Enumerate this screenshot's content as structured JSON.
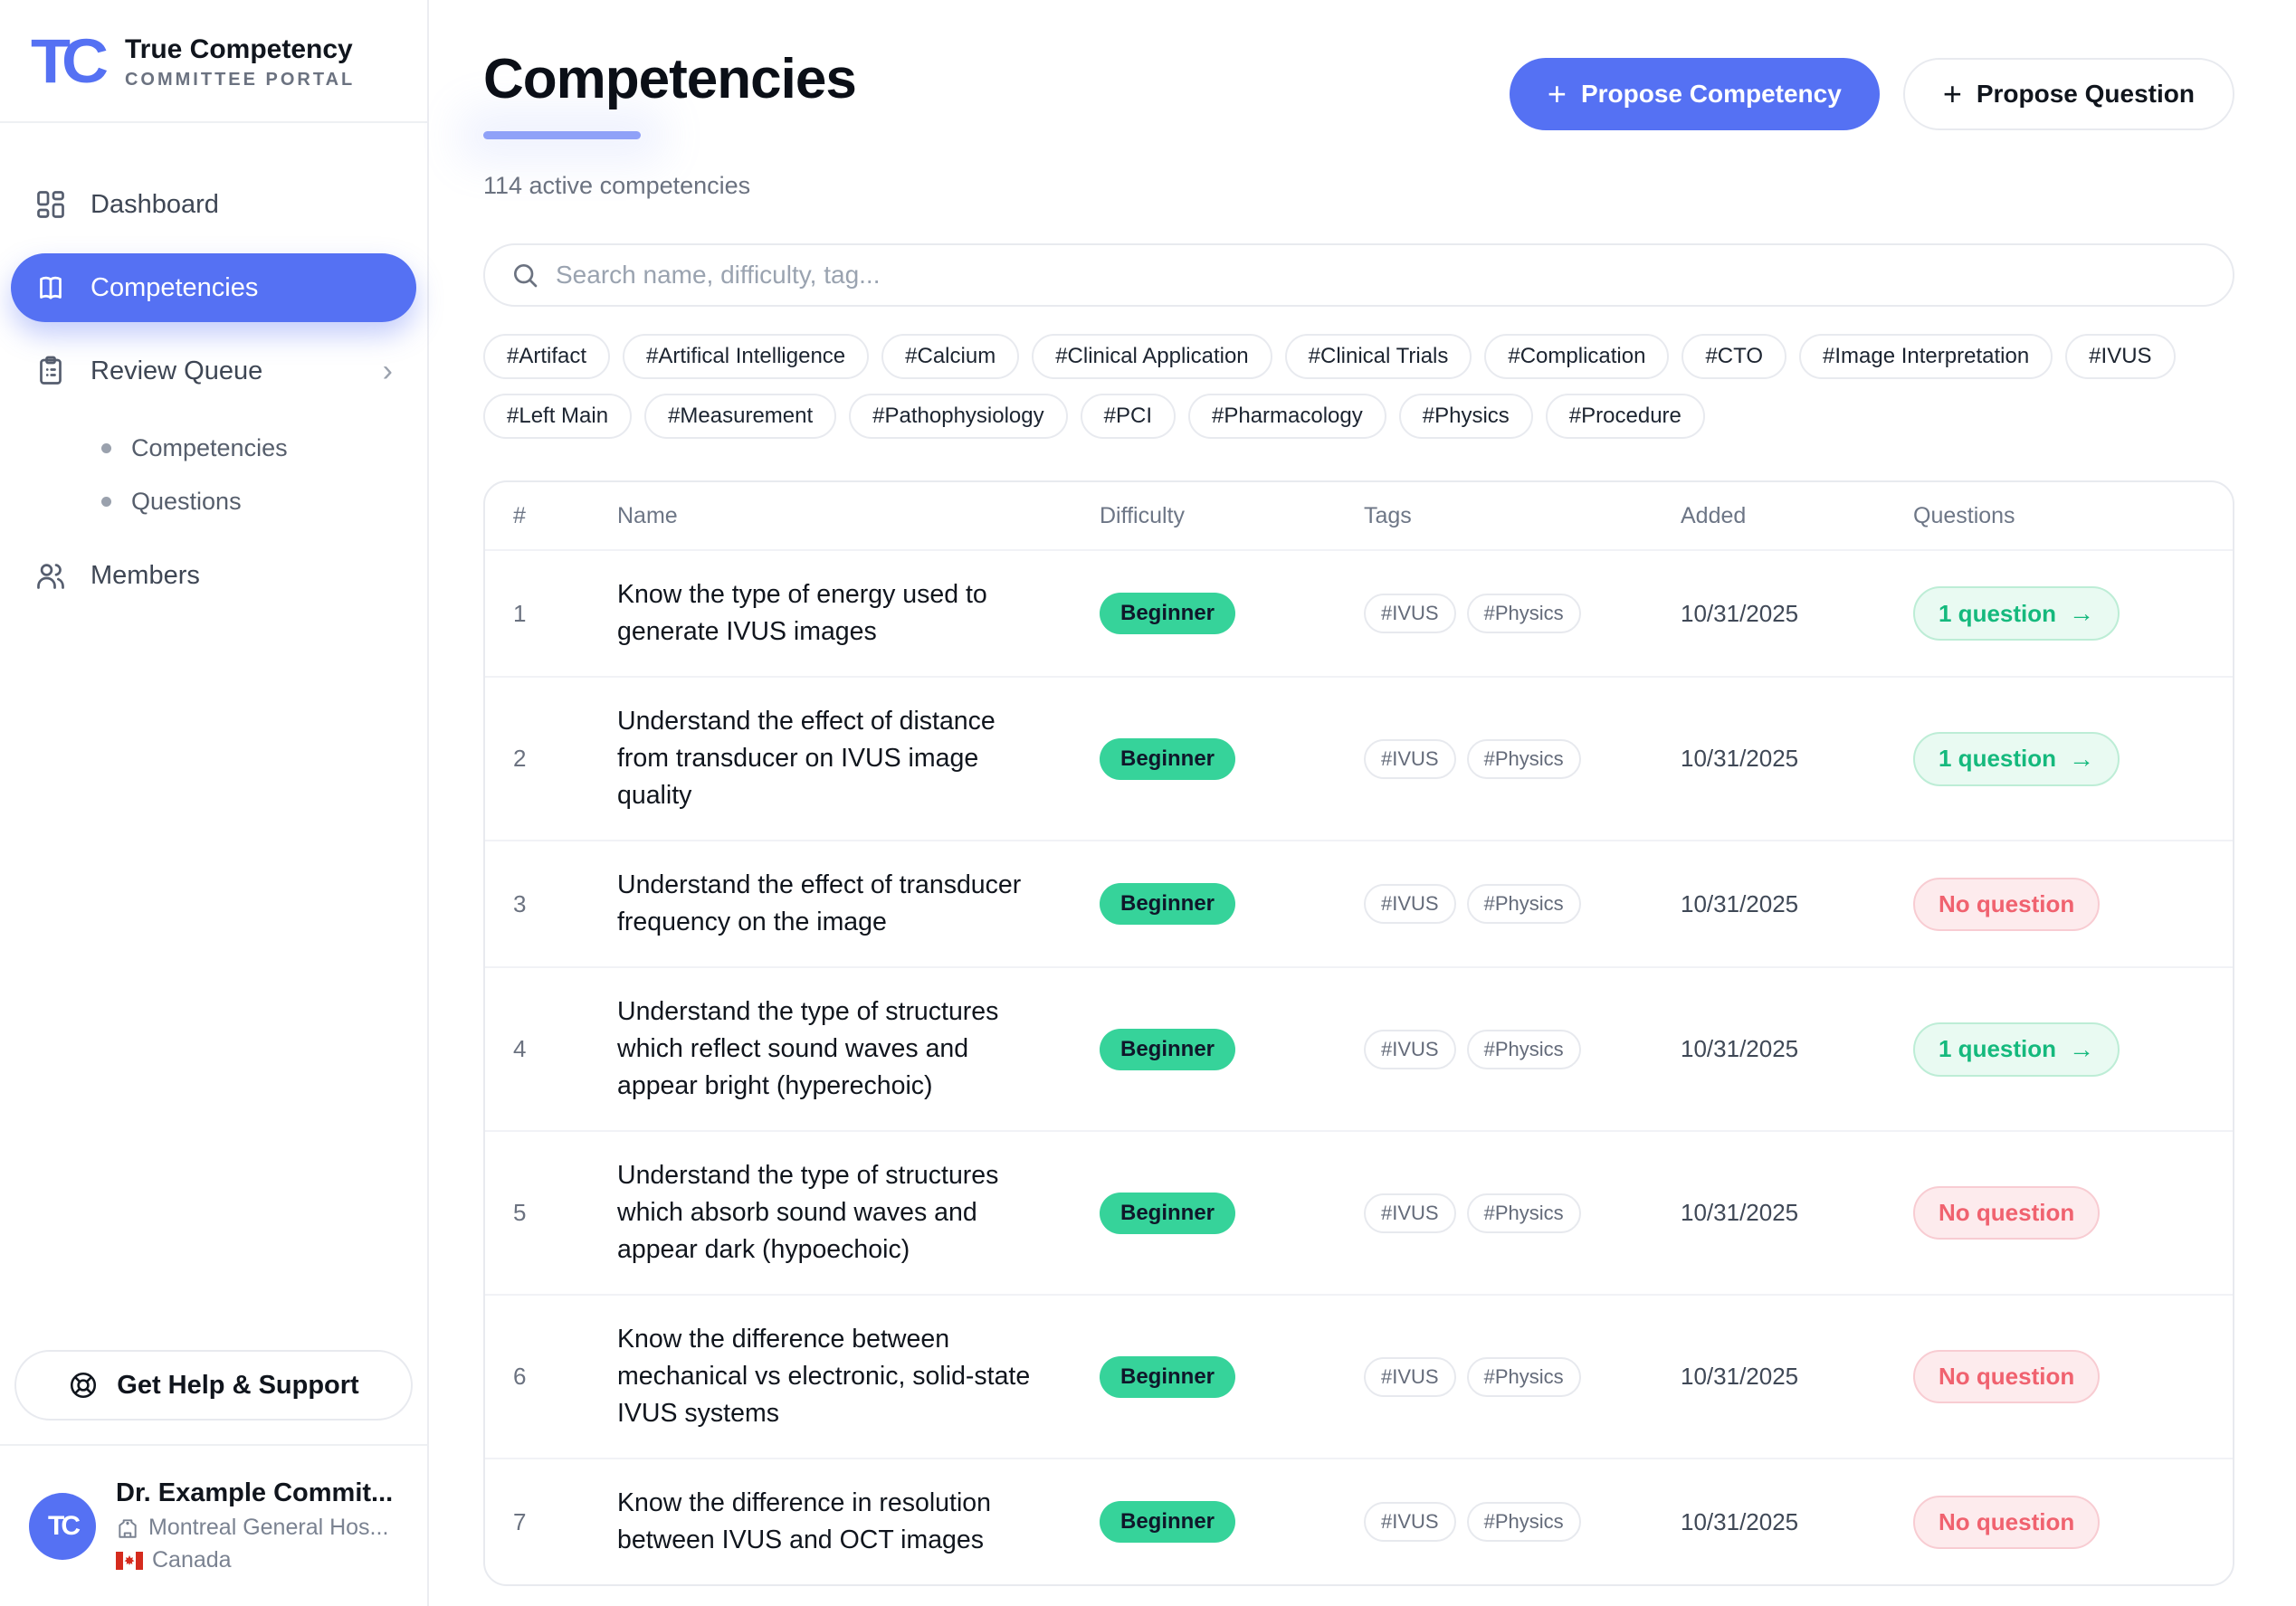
{
  "brand": {
    "mark": "TC",
    "name": "True Competency",
    "tagline": "COMMITTEE PORTAL"
  },
  "sidebar": {
    "dashboard": "Dashboard",
    "competencies": "Competencies",
    "review_queue": "Review Queue",
    "review_chevron": "›",
    "review_children": [
      "Competencies",
      "Questions"
    ],
    "members": "Members",
    "help": "Get Help & Support",
    "user": {
      "avatar": "TC",
      "name": "Dr. Example Commit...",
      "hospital": "Montreal General Hos...",
      "country": "Canada"
    }
  },
  "page": {
    "title": "Competencies",
    "count_label": "114 active competencies"
  },
  "actions": {
    "plus": "+",
    "propose_competency": "Propose Competency",
    "propose_question": "Propose Question"
  },
  "search": {
    "placeholder": "Search name, difficulty, tag..."
  },
  "filter_tags": [
    "#Artifact",
    "#Artifical Intelligence",
    "#Calcium",
    "#Clinical Application",
    "#Clinical Trials",
    "#Complication",
    "#CTO",
    "#Image Interpretation",
    "#IVUS",
    "#Left Main",
    "#Measurement",
    "#Pathophysiology",
    "#PCI",
    "#Pharmacology",
    "#Physics",
    "#Procedure"
  ],
  "table": {
    "columns": {
      "num": "#",
      "name": "Name",
      "difficulty": "Difficulty",
      "tags": "Tags",
      "added": "Added",
      "questions": "Questions"
    },
    "arrow": "→",
    "rows": [
      {
        "num": "1",
        "name": "Know the type of energy used to generate IVUS images",
        "difficulty": "Beginner",
        "tags": [
          "#IVUS",
          "#Physics"
        ],
        "added": "10/31/2025",
        "questions": "1 question",
        "has_questions": true
      },
      {
        "num": "2",
        "name": "Understand the effect of distance from transducer on IVUS image quality",
        "difficulty": "Beginner",
        "tags": [
          "#IVUS",
          "#Physics"
        ],
        "added": "10/31/2025",
        "questions": "1 question",
        "has_questions": true
      },
      {
        "num": "3",
        "name": "Understand the effect of transducer frequency on the image",
        "difficulty": "Beginner",
        "tags": [
          "#IVUS",
          "#Physics"
        ],
        "added": "10/31/2025",
        "questions": "No question",
        "has_questions": false
      },
      {
        "num": "4",
        "name": "Understand the type of structures which reflect sound waves and appear bright (hyperechoic)",
        "difficulty": "Beginner",
        "tags": [
          "#IVUS",
          "#Physics"
        ],
        "added": "10/31/2025",
        "questions": "1 question",
        "has_questions": true
      },
      {
        "num": "5",
        "name": "Understand the type of structures which absorb sound waves and appear dark (hypoechoic)",
        "difficulty": "Beginner",
        "tags": [
          "#IVUS",
          "#Physics"
        ],
        "added": "10/31/2025",
        "questions": "No question",
        "has_questions": false
      },
      {
        "num": "6",
        "name": "Know the difference between mechanical vs electronic, solid-state IVUS systems",
        "difficulty": "Beginner",
        "tags": [
          "#IVUS",
          "#Physics"
        ],
        "added": "10/31/2025",
        "questions": "No question",
        "has_questions": false
      },
      {
        "num": "7",
        "name": "Know the difference in resolution between IVUS and OCT images",
        "difficulty": "Beginner",
        "tags": [
          "#IVUS",
          "#Physics"
        ],
        "added": "10/31/2025",
        "questions": "No question",
        "has_questions": false
      }
    ]
  },
  "colors": {
    "accent": "#5571f3",
    "underline": "#8fa1f8",
    "badge_green": "#36d39a",
    "question_green": "#15b97d",
    "question_red": "#f0626f"
  }
}
